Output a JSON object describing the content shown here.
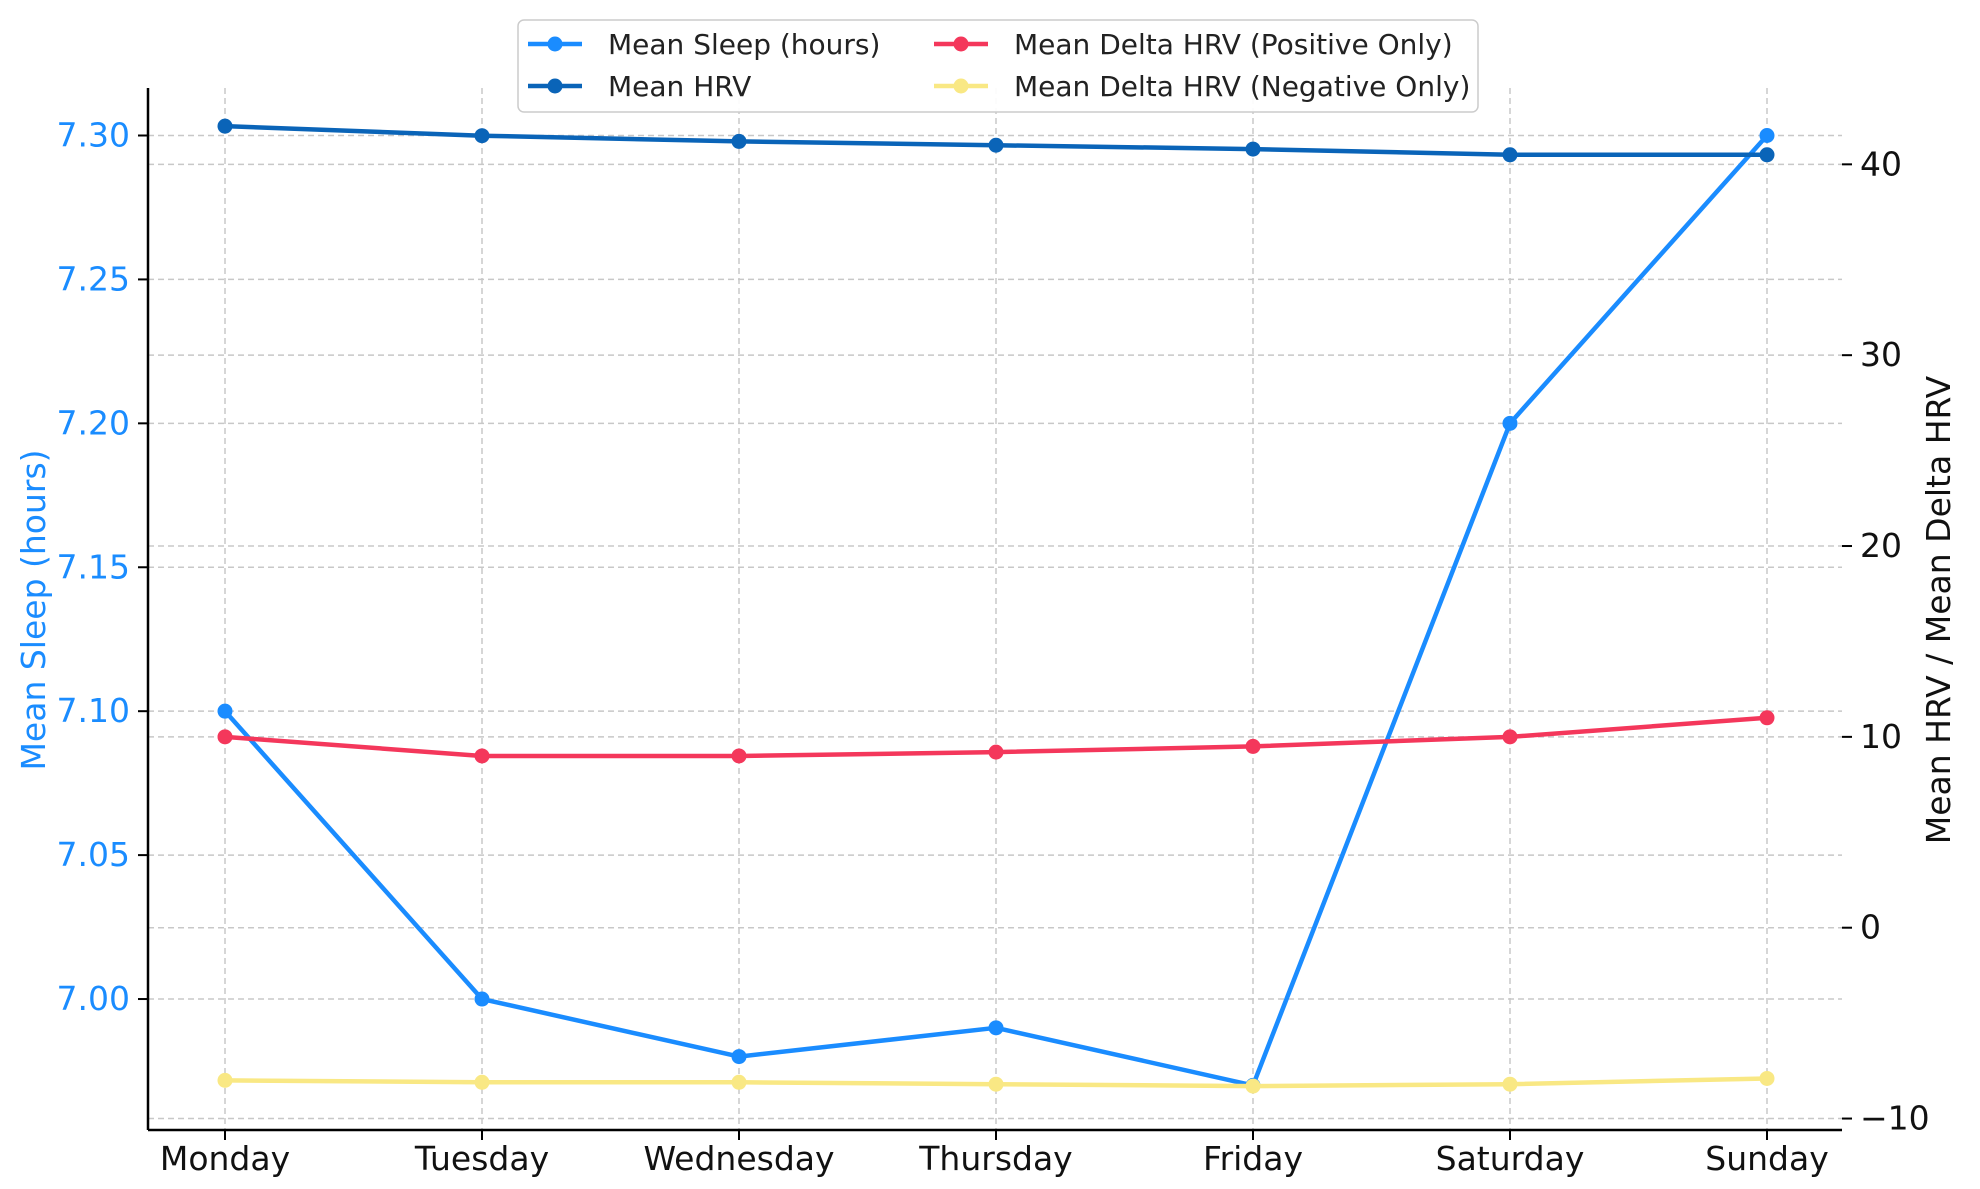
{
  "chart_data": {
    "type": "line",
    "categories": [
      "Monday",
      "Tuesday",
      "Wednesday",
      "Thursday",
      "Friday",
      "Saturday",
      "Sunday"
    ],
    "left_axis": {
      "label": "Mean Sleep (hours)",
      "ticks": [
        "7.00",
        "7.05",
        "7.10",
        "7.15",
        "7.20",
        "7.25",
        "7.30"
      ],
      "ylim": [
        6.9545,
        7.3165
      ],
      "color": "#1a8cff"
    },
    "right_axis": {
      "label": "Mean HRV / Mean Delta HRV",
      "ticks": [
        "−10",
        "0",
        "10",
        "20",
        "30",
        "40"
      ],
      "ylim": [
        -10.6,
        44.0
      ]
    },
    "grid": true,
    "legend_position": "top-center",
    "series": [
      {
        "name": "Mean Sleep (hours)",
        "axis": "left",
        "color": "#1a8cff",
        "values": [
          7.1,
          7.0,
          6.98,
          6.99,
          6.97,
          7.2,
          7.3
        ]
      },
      {
        "name": "Mean HRV",
        "axis": "right",
        "color": "#0a64b8",
        "values": [
          42.0,
          41.5,
          41.2,
          41.0,
          40.8,
          40.5,
          40.5
        ]
      },
      {
        "name": "Mean Delta HRV (Positive Only)",
        "axis": "right",
        "color": "#f4375b",
        "values": [
          10.0,
          9.0,
          9.0,
          9.2,
          9.5,
          10.0,
          11.0
        ]
      },
      {
        "name": "Mean Delta HRV (Negative Only)",
        "axis": "right",
        "color": "#f9e884",
        "values": [
          -8.0,
          -8.1,
          -8.1,
          -8.2,
          -8.3,
          -8.2,
          -7.9
        ]
      }
    ]
  }
}
